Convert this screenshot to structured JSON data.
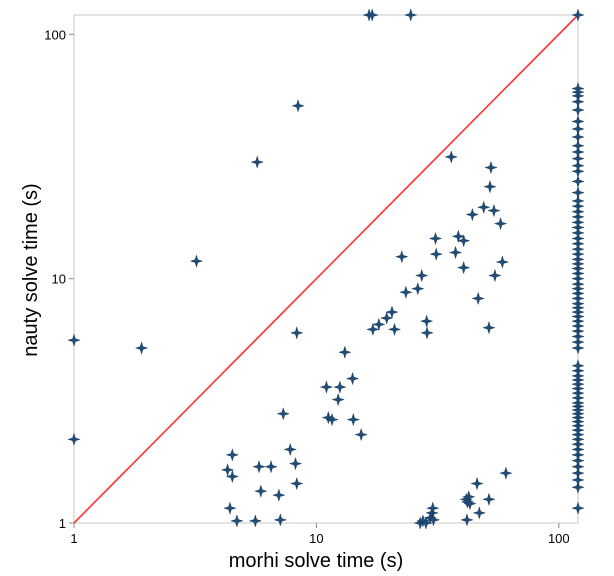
{
  "chart_data": {
    "type": "scatter",
    "title": "",
    "xlabel": "morhi solve time (s)",
    "ylabel": "nauty solve time (s)",
    "xscale": "log",
    "yscale": "log",
    "xlim": [
      1,
      120
    ],
    "ylim": [
      1,
      120
    ],
    "xticks": [
      {
        "value": 1,
        "label": "1"
      },
      {
        "value": 10,
        "label": "10"
      },
      {
        "value": 100,
        "label": "100"
      }
    ],
    "yticks": [
      {
        "value": 1,
        "label": "1"
      },
      {
        "value": 10,
        "label": "10"
      },
      {
        "value": 100,
        "label": "100"
      }
    ],
    "grid": false,
    "legend": "none",
    "marker_color": "#1f4e79",
    "diagonal_line": {
      "from": [
        1,
        1
      ],
      "to": [
        120,
        120
      ],
      "color": "#ff3333"
    },
    "points": [
      [
        1.0,
        5.6
      ],
      [
        1.0,
        2.2
      ],
      [
        1.9,
        5.2
      ],
      [
        3.2,
        11.8
      ],
      [
        5.7,
        30
      ],
      [
        8.4,
        51
      ],
      [
        16.5,
        120
      ],
      [
        17.0,
        120
      ],
      [
        24.5,
        120
      ],
      [
        120,
        120
      ],
      [
        4.3,
        1.65
      ],
      [
        4.4,
        1.15
      ],
      [
        4.5,
        1.55
      ],
      [
        4.5,
        1.9
      ],
      [
        4.7,
        1.02
      ],
      [
        5.6,
        1.02
      ],
      [
        5.8,
        1.7
      ],
      [
        5.9,
        1.35
      ],
      [
        6.5,
        1.7
      ],
      [
        7.0,
        1.3
      ],
      [
        7.1,
        1.03
      ],
      [
        7.3,
        2.8
      ],
      [
        7.8,
        2.0
      ],
      [
        8.2,
        1.75
      ],
      [
        8.3,
        1.45
      ],
      [
        8.3,
        6.0
      ],
      [
        11.0,
        3.6
      ],
      [
        11.2,
        2.7
      ],
      [
        11.6,
        2.65
      ],
      [
        12.3,
        3.2
      ],
      [
        12.5,
        3.6
      ],
      [
        13.1,
        5.0
      ],
      [
        14.1,
        3.9
      ],
      [
        14.2,
        2.65
      ],
      [
        15.3,
        2.3
      ],
      [
        17.1,
        6.2
      ],
      [
        18.1,
        6.5
      ],
      [
        19.5,
        6.9
      ],
      [
        20.5,
        7.3
      ],
      [
        21.0,
        6.2
      ],
      [
        22.5,
        12.3
      ],
      [
        23.4,
        8.8
      ],
      [
        26.2,
        9.1
      ],
      [
        27.2,
        10.3
      ],
      [
        28.5,
        6.7
      ],
      [
        28.6,
        6.0
      ],
      [
        31.0,
        14.6
      ],
      [
        31.2,
        12.6
      ],
      [
        36.0,
        31.5
      ],
      [
        37.5,
        12.8
      ],
      [
        38.5,
        14.9
      ],
      [
        40.5,
        11.1
      ],
      [
        40.5,
        14.3
      ],
      [
        44.0,
        18.3
      ],
      [
        46.5,
        8.3
      ],
      [
        49.0,
        19.6
      ],
      [
        51.5,
        6.3
      ],
      [
        52.0,
        23.8
      ],
      [
        52.5,
        28.5
      ],
      [
        54.0,
        19.0
      ],
      [
        54.5,
        10.3
      ],
      [
        57.5,
        16.8
      ],
      [
        58.5,
        11.7
      ],
      [
        60.5,
        1.6
      ],
      [
        26.8,
        1.0
      ],
      [
        27.5,
        1.02
      ],
      [
        28.3,
        1.0
      ],
      [
        29.5,
        1.05
      ],
      [
        30.0,
        1.1
      ],
      [
        30.2,
        1.15
      ],
      [
        30.4,
        1.03
      ],
      [
        41.5,
        1.25
      ],
      [
        42.0,
        1.22
      ],
      [
        42.5,
        1.28
      ],
      [
        43.0,
        1.2
      ],
      [
        41.8,
        1.03
      ],
      [
        46.0,
        1.45
      ],
      [
        51.5,
        1.25
      ],
      [
        47.0,
        1.1
      ],
      [
        120,
        1.15
      ],
      [
        120,
        1.4
      ],
      [
        120,
        1.5
      ],
      [
        120,
        1.6
      ],
      [
        120,
        1.7
      ],
      [
        120,
        1.8
      ],
      [
        120,
        1.9
      ],
      [
        120,
        2.0
      ],
      [
        120,
        2.1
      ],
      [
        120,
        2.2
      ],
      [
        120,
        2.3
      ],
      [
        120,
        2.4
      ],
      [
        120,
        2.5
      ],
      [
        120,
        2.6
      ],
      [
        120,
        2.7
      ],
      [
        120,
        2.8
      ],
      [
        120,
        2.9
      ],
      [
        120,
        3.0
      ],
      [
        120,
        3.1
      ],
      [
        120,
        3.25
      ],
      [
        120,
        3.4
      ],
      [
        120,
        3.55
      ],
      [
        120,
        3.7
      ],
      [
        120,
        3.85
      ],
      [
        120,
        4.0
      ],
      [
        120,
        4.2
      ],
      [
        120,
        4.4
      ],
      [
        120,
        5.2
      ],
      [
        120,
        5.5
      ],
      [
        120,
        5.8
      ],
      [
        120,
        6.1
      ],
      [
        120,
        6.4
      ],
      [
        120,
        6.7
      ],
      [
        120,
        7.0
      ],
      [
        120,
        7.3
      ],
      [
        120,
        7.6
      ],
      [
        120,
        7.9
      ],
      [
        120,
        8.3
      ],
      [
        120,
        8.7
      ],
      [
        120,
        9.1
      ],
      [
        120,
        9.5
      ],
      [
        120,
        10.0
      ],
      [
        120,
        10.5
      ],
      [
        120,
        11.0
      ],
      [
        120,
        11.5
      ],
      [
        120,
        12.0
      ],
      [
        120,
        12.6
      ],
      [
        120,
        13.2
      ],
      [
        120,
        13.9
      ],
      [
        120,
        14.6
      ],
      [
        120,
        15.4
      ],
      [
        120,
        16.2
      ],
      [
        120,
        17.0
      ],
      [
        120,
        17.9
      ],
      [
        120,
        18.8
      ],
      [
        120,
        19.8
      ],
      [
        120,
        20.8
      ],
      [
        120,
        22.5
      ],
      [
        120,
        25.0
      ],
      [
        120,
        27.5
      ],
      [
        120,
        29.0
      ],
      [
        120,
        31.0
      ],
      [
        120,
        33.0
      ],
      [
        120,
        35.0
      ],
      [
        120,
        38.0
      ],
      [
        120,
        41.0
      ],
      [
        120,
        44.0
      ],
      [
        120,
        49.0
      ],
      [
        120,
        53.0
      ],
      [
        120,
        56.0
      ],
      [
        120,
        58.0
      ],
      [
        120,
        60.0
      ]
    ]
  }
}
